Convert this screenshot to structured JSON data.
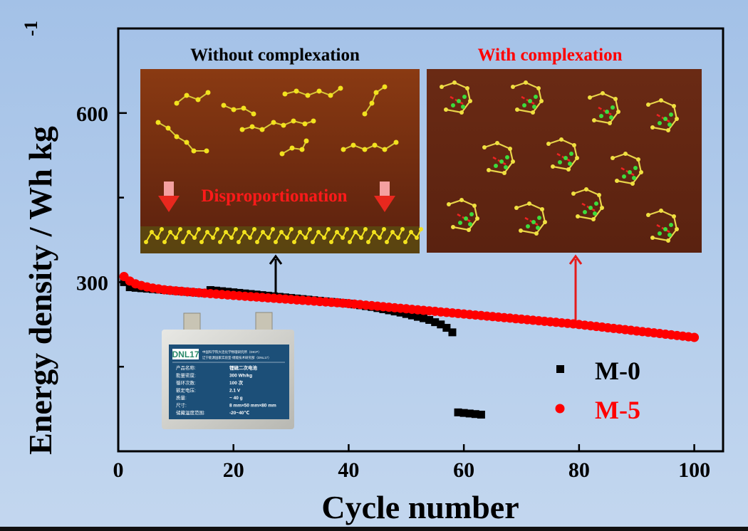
{
  "chart_data": {
    "type": "scatter",
    "title": "",
    "xlabel": "Cycle number",
    "ylabel": "Energy density / Wh kg",
    "ylabel_superscript": "-1",
    "xlim": [
      0,
      105
    ],
    "ylim": [
      0,
      750
    ],
    "xticks": [
      0,
      20,
      40,
      60,
      80,
      100
    ],
    "xtick_labels": [
      "0",
      "20",
      "40",
      "60",
      "80",
      "100"
    ],
    "yticks_major": [
      300,
      600
    ],
    "ytick_labels": [
      "300",
      "600"
    ],
    "yticks_minor": [
      150,
      450
    ],
    "grid": false,
    "legend_position": "bottom-right",
    "series": [
      {
        "name": "M-0",
        "color": "#000000",
        "marker": "square",
        "x": [
          1,
          2,
          3,
          4,
          5,
          6,
          7,
          8,
          9,
          10,
          11,
          12,
          13,
          14,
          15,
          16,
          17,
          18,
          19,
          20,
          21,
          22,
          23,
          24,
          25,
          26,
          27,
          28,
          29,
          30,
          31,
          32,
          33,
          34,
          35,
          36,
          37,
          38,
          39,
          40,
          41,
          42,
          43,
          44,
          45,
          46,
          47,
          48,
          49,
          50,
          51,
          52,
          53,
          54,
          55,
          56,
          57,
          58,
          59,
          60,
          61,
          62,
          63
        ],
        "y": [
          300,
          291,
          290,
          289.2,
          288.4,
          287.6,
          286.8,
          286,
          285.2,
          284.4,
          283.6,
          282.8,
          282,
          281.2,
          280.4,
          286,
          285,
          284,
          283,
          282,
          281,
          280,
          279,
          278,
          277,
          276,
          275,
          274,
          273,
          272,
          271,
          270,
          269,
          268,
          267,
          266,
          265,
          264,
          263,
          262,
          260.5,
          259,
          257.5,
          256,
          254,
          252,
          250,
          248,
          246,
          243.5,
          241,
          238.5,
          236,
          233,
          229,
          225,
          219,
          211,
          69,
          68,
          67,
          66,
          65
        ]
      },
      {
        "name": "M-5",
        "color": "#ff0000",
        "marker": "circle",
        "x": [
          1,
          2,
          3,
          4,
          5,
          6,
          7,
          8,
          9,
          10,
          11,
          12,
          13,
          14,
          15,
          16,
          17,
          18,
          19,
          20,
          21,
          22,
          23,
          24,
          25,
          26,
          27,
          28,
          29,
          30,
          31,
          32,
          33,
          34,
          35,
          36,
          37,
          38,
          39,
          40,
          41,
          42,
          43,
          44,
          45,
          46,
          47,
          48,
          49,
          50,
          51,
          52,
          53,
          54,
          55,
          56,
          57,
          58,
          59,
          60,
          61,
          62,
          63,
          64,
          65,
          66,
          67,
          68,
          69,
          70,
          71,
          72,
          73,
          74,
          75,
          76,
          77,
          78,
          79,
          80,
          81,
          82,
          83,
          84,
          85,
          86,
          87,
          88,
          89,
          90,
          91,
          92,
          93,
          94,
          95,
          96,
          97,
          98,
          99,
          100
        ],
        "y": [
          310,
          302,
          297,
          294,
          291.5,
          289.5,
          288,
          286.5,
          285.5,
          284.5,
          283.7,
          282.9,
          282.1,
          281.3,
          280.5,
          279.7,
          278.9,
          278.1,
          277.3,
          276.5,
          275.8,
          275.0,
          274.3,
          273.6,
          272.9,
          272.1,
          271.4,
          270.7,
          270.0,
          269.3,
          268.5,
          267.8,
          267.1,
          266.4,
          265.6,
          264.9,
          264.2,
          263.5,
          262.7,
          262.0,
          261.1,
          260.2,
          259.2,
          258.3,
          257.4,
          256.5,
          255.5,
          254.6,
          253.7,
          252.8,
          251.8,
          250.9,
          250.0,
          249.1,
          248.2,
          247.2,
          246.3,
          245.4,
          244.5,
          243.5,
          242.6,
          241.7,
          240.8,
          239.8,
          238.9,
          238.0,
          237.1,
          236.2,
          235.2,
          234.3,
          233.4,
          232.5,
          231.5,
          230.6,
          229.7,
          228.8,
          227.8,
          226.9,
          226.0,
          224.9,
          223.7,
          222.6,
          221.4,
          220.3,
          219.1,
          218.0,
          216.9,
          215.7,
          214.6,
          213.4,
          212.3,
          211.1,
          210.0,
          208.9,
          207.7,
          206.6,
          205.4,
          204.3,
          203.1,
          202.0
        ]
      }
    ],
    "annotations": {
      "inset_left_title": "Without complexation",
      "inset_left_label": "Disproportionation",
      "inset_right_title": "With complexation"
    }
  },
  "battery_label": {
    "logo": "DNL17",
    "org_line1": "中国科学院大连化学物理研究所（DICP）",
    "org_line2": "辽宁能源国家实验室-储能技术研究部（DNL17）",
    "rows": [
      {
        "key": "产品名称:",
        "value": "锂硫二次电池"
      },
      {
        "key": "能量密度:",
        "value": "300 Wh/kg"
      },
      {
        "key": "循环次数:",
        "value": "100 次"
      },
      {
        "key": "额定电压:",
        "value": "2.1 V"
      },
      {
        "key": "质量:",
        "value": "~ 40 g"
      },
      {
        "key": "尺寸:",
        "value": "8 mm×50 mm×80 mm"
      },
      {
        "key": "储藏温度范围:",
        "value": "-20~40℃"
      }
    ]
  },
  "colors": {
    "background": "#b3cbea",
    "m0": "#000000",
    "m5": "#ff0000",
    "inset_bg": "#6b2a12"
  }
}
